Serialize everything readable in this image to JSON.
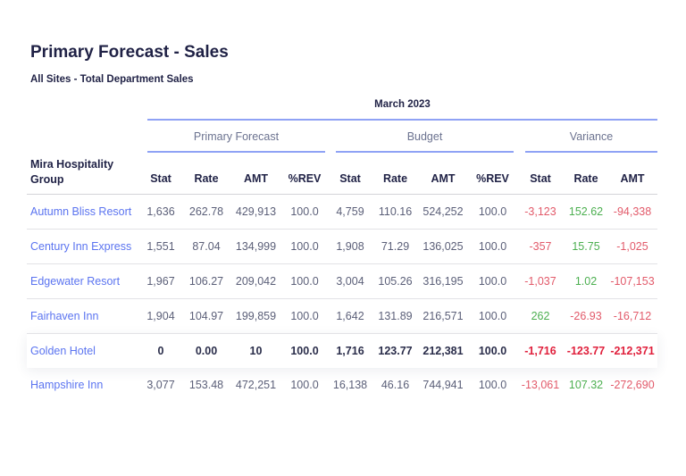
{
  "title": "Primary Forecast - Sales",
  "subtitle": "All Sites - Total Department Sales",
  "period": "March 2023",
  "groups": [
    "Primary Forecast",
    "Budget",
    "Variance"
  ],
  "corner": "Mira Hospitality Group",
  "columns": [
    "Stat",
    "Rate",
    "AMT",
    "%REV",
    "Stat",
    "Rate",
    "AMT",
    "%REV",
    "Stat",
    "Rate",
    "AMT"
  ],
  "colors": {
    "accent": "#5b74f0",
    "negative": "#e25a6a",
    "positive": "#4caf50",
    "rule": "#8fa2f5"
  },
  "highlighted_row": "Golden Hotel",
  "rows": [
    {
      "name": "Autumn Bliss Resort",
      "values": [
        "1,636",
        "262.78",
        "429,913",
        "100.0",
        "4,759",
        "110.16",
        "524,252",
        "100.0",
        "-3,123",
        "152.62",
        "-94,338"
      ]
    },
    {
      "name": "Century Inn Express",
      "values": [
        "1,551",
        "87.04",
        "134,999",
        "100.0",
        "1,908",
        "71.29",
        "136,025",
        "100.0",
        "-357",
        "15.75",
        "-1,025"
      ]
    },
    {
      "name": "Edgewater Resort",
      "values": [
        "1,967",
        "106.27",
        "209,042",
        "100.0",
        "3,004",
        "105.26",
        "316,195",
        "100.0",
        "-1,037",
        "1.02",
        "-107,153"
      ]
    },
    {
      "name": "Fairhaven Inn",
      "values": [
        "1,904",
        "104.97",
        "199,859",
        "100.0",
        "1,642",
        "131.89",
        "216,571",
        "100.0",
        "262",
        "-26.93",
        "-16,712"
      ]
    },
    {
      "name": "Golden Hotel",
      "values": [
        "0",
        "0.00",
        "10",
        "100.0",
        "1,716",
        "123.77",
        "212,381",
        "100.0",
        "-1,716",
        "-123.77",
        "-212,371"
      ]
    },
    {
      "name": "Hampshire Inn",
      "values": [
        "3,077",
        "153.48",
        "472,251",
        "100.0",
        "16,138",
        "46.16",
        "744,941",
        "100.0",
        "-13,061",
        "107.32",
        "-272,690"
      ]
    }
  ]
}
